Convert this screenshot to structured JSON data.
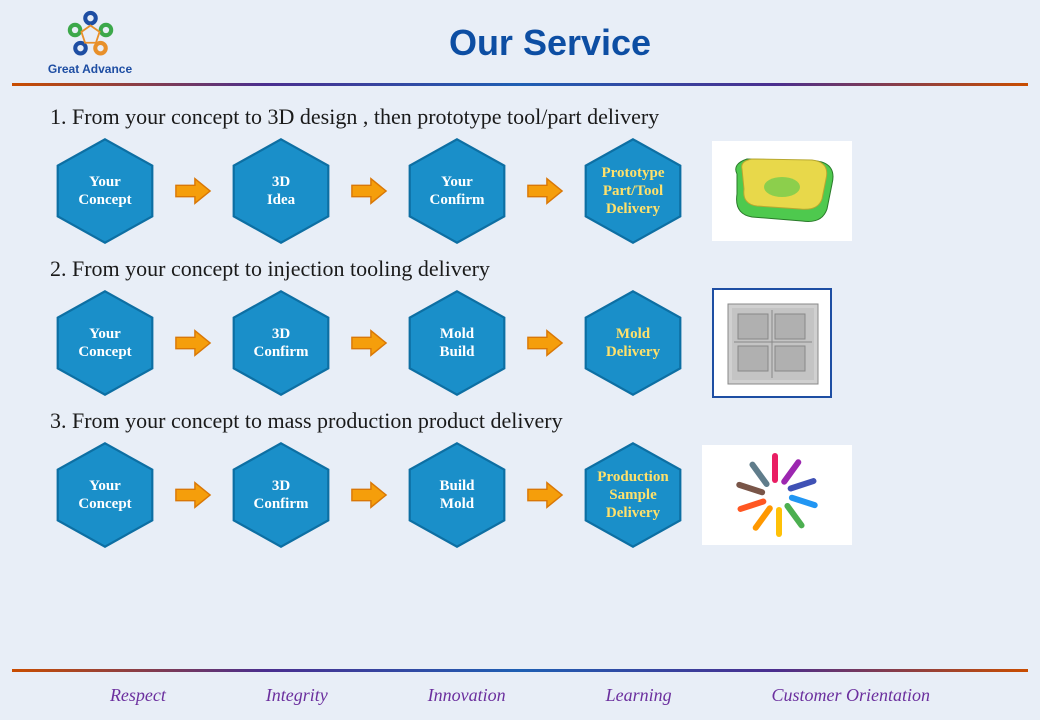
{
  "header": {
    "logo_text": "Great Advance",
    "title": "Our Service"
  },
  "styling": {
    "background": "#e8eef7",
    "title_color": "#0d4ea3",
    "hex_fill": "#1a8fc9",
    "hex_stroke": "#0d6fa3",
    "hex_text_white": "#ffffff",
    "hex_text_yellow": "#ffe16b",
    "arrow_fill": "#f59e0b",
    "arrow_stroke": "#d97706",
    "gradient_line_colors": [
      "#c94d00",
      "#4a2e8f",
      "#1e5fb3",
      "#4a2e8f",
      "#c94d00"
    ],
    "footer_color": "#6b2f9e",
    "logo_colors": {
      "blue": "#1e4ea3",
      "green": "#3ca84a",
      "orange": "#e8902a"
    }
  },
  "sections": [
    {
      "title": "1. From your concept to 3D design , then prototype tool/part  delivery",
      "nodes": [
        {
          "label": "Your Concept",
          "text_color": "white"
        },
        {
          "label": "3D Idea",
          "text_color": "white"
        },
        {
          "label": "Your Confirm",
          "text_color": "white"
        },
        {
          "label": "Prototype Part/Tool Delivery",
          "text_color": "yellow"
        }
      ],
      "image": "cad-part"
    },
    {
      "title": "2. From your concept to injection tooling delivery",
      "nodes": [
        {
          "label": "Your Concept",
          "text_color": "white"
        },
        {
          "label": "3D Confirm",
          "text_color": "white"
        },
        {
          "label": "Mold Build",
          "text_color": "white"
        },
        {
          "label": "Mold Delivery",
          "text_color": "yellow"
        }
      ],
      "image": "mold-machine"
    },
    {
      "title": "3. From your concept to mass production product delivery",
      "nodes": [
        {
          "label": "Your Concept",
          "text_color": "white"
        },
        {
          "label": "3D Confirm",
          "text_color": "white"
        },
        {
          "label": "Build Mold",
          "text_color": "white"
        },
        {
          "label": "Production Sample Delivery",
          "text_color": "yellow"
        }
      ],
      "image": "product-samples"
    }
  ],
  "footer": [
    "Respect",
    "Integrity",
    "Innovation",
    "Learning",
    "Customer Orientation"
  ]
}
